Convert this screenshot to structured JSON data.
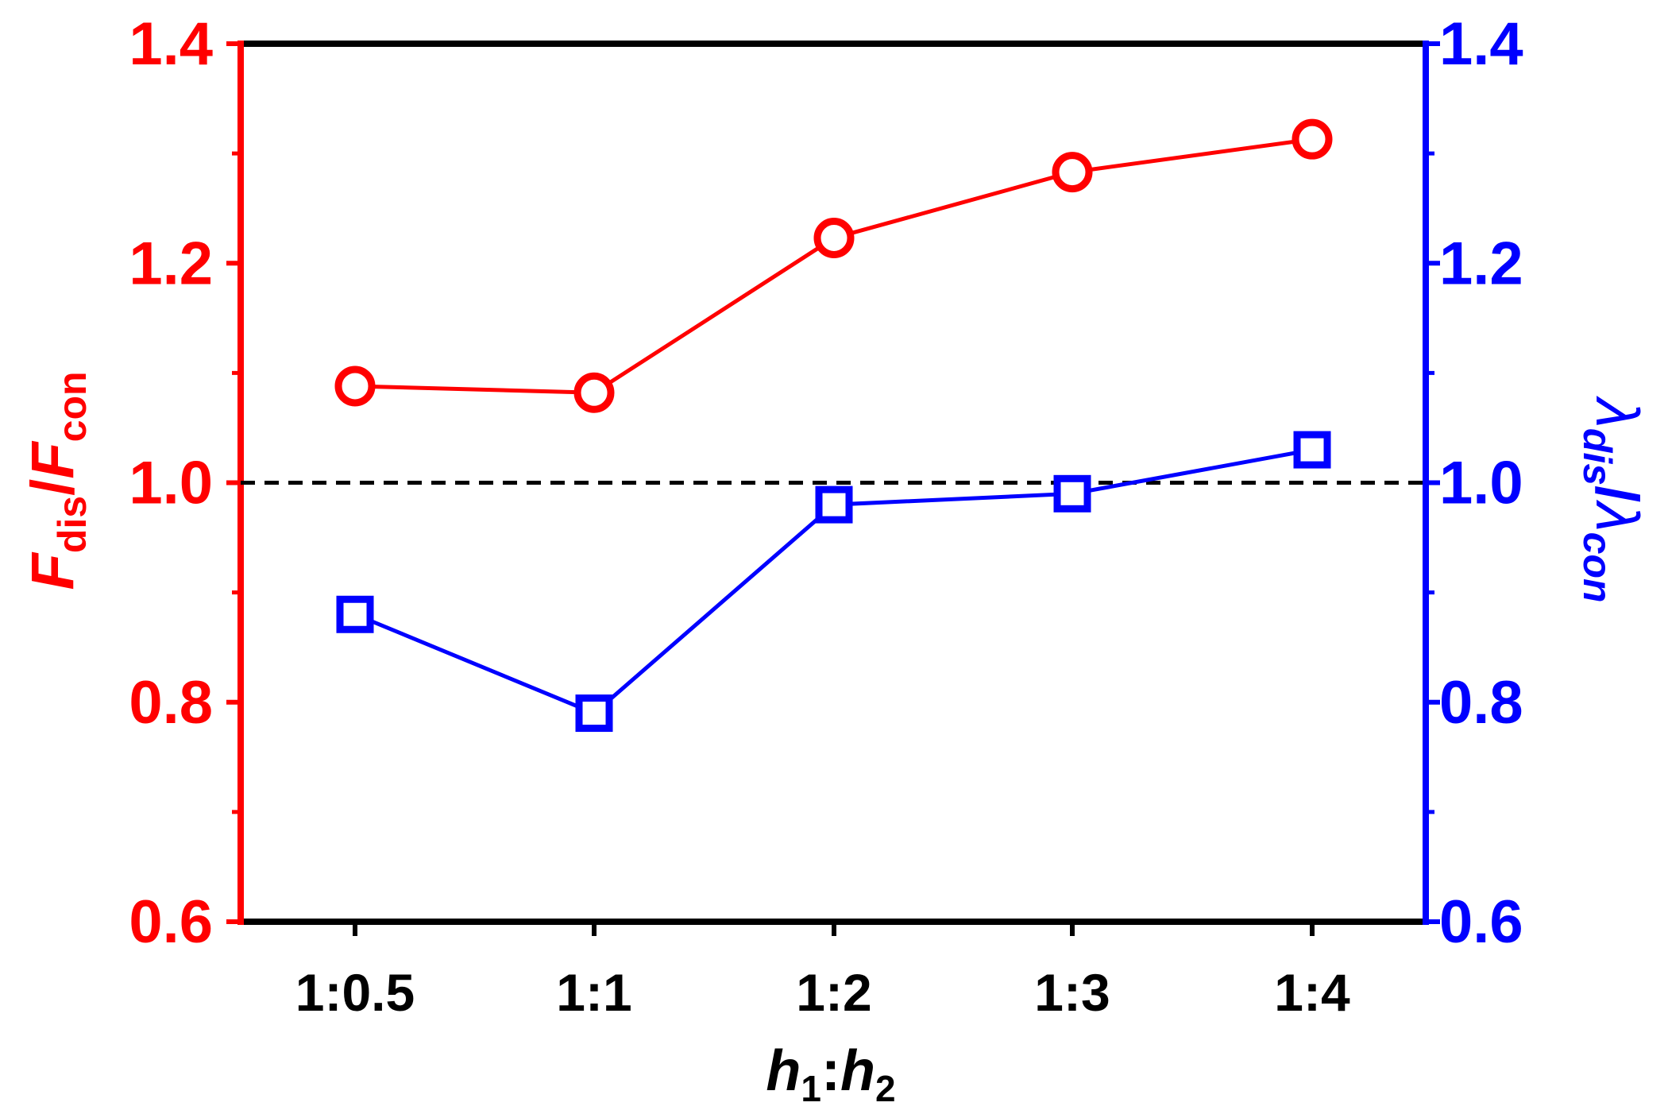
{
  "chart_data": {
    "type": "line",
    "categories": [
      "1:0.5",
      "1:1",
      "1:2",
      "1:3",
      "1:4"
    ],
    "xlabel": {
      "main1": "h",
      "sub1": "1",
      "sep": ":",
      "main2": "h",
      "sub2": "2"
    },
    "left_axis": {
      "label": {
        "main1": "F",
        "sub1": "dis",
        "sep": "/",
        "main2": "F",
        "sub2": "con"
      },
      "ylim": [
        0.6,
        1.4
      ],
      "ticks": [
        0.6,
        0.8,
        1.0,
        1.2,
        1.4
      ],
      "tick_labels": [
        "0.6",
        "0.8",
        "1.0",
        "1.2",
        "1.4"
      ],
      "color": "#ff0000"
    },
    "right_axis": {
      "label": {
        "main1": "λ",
        "sub1": "dis",
        "sep": "/",
        "main2": "λ",
        "sub2": "con"
      },
      "ylim": [
        0.6,
        1.4
      ],
      "ticks": [
        0.6,
        0.8,
        1.0,
        1.2,
        1.4
      ],
      "tick_labels": [
        "0.6",
        "0.8",
        "1.0",
        "1.2",
        "1.4"
      ],
      "color": "#0000ff"
    },
    "series": [
      {
        "name": "F_dis/F_con",
        "axis": "left",
        "marker": "circle",
        "color": "#ff0000",
        "values": [
          1.088,
          1.082,
          1.223,
          1.283,
          1.313
        ]
      },
      {
        "name": "λ_dis/λ_con",
        "axis": "right",
        "marker": "square",
        "color": "#0000ff",
        "values": [
          0.88,
          0.79,
          0.98,
          0.99,
          1.03
        ]
      }
    ],
    "reference_line": {
      "y": 1.0,
      "style": "dashed",
      "color": "#000000"
    }
  }
}
